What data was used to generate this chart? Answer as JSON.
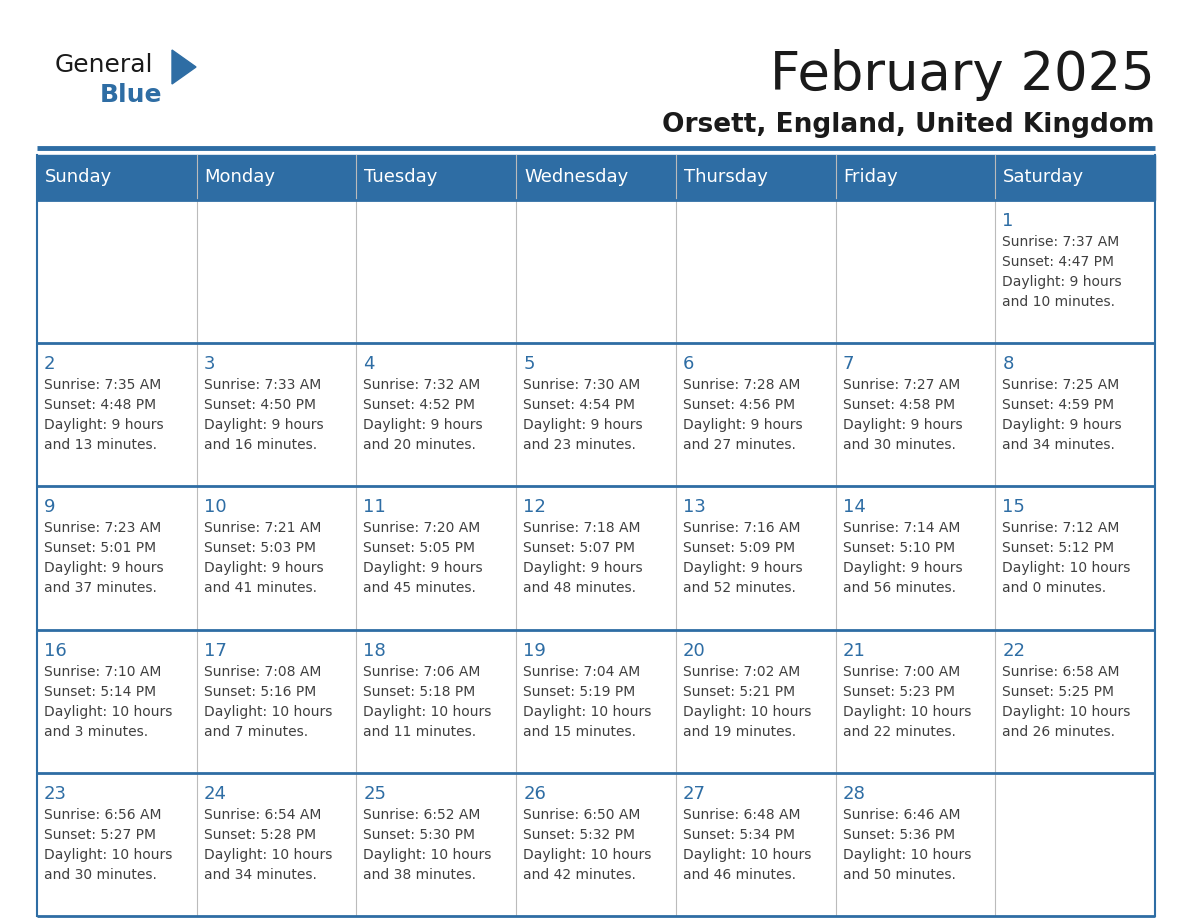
{
  "title": "February 2025",
  "subtitle": "Orsett, England, United Kingdom",
  "header_bg": "#2E6DA4",
  "header_text_color": "#FFFFFF",
  "cell_bg_light": "#EFEFEF",
  "cell_bg_white": "#FFFFFF",
  "day_number_color": "#2E6DA4",
  "info_text_color": "#404040",
  "border_color": "#2E6DA4",
  "separator_color": "#3a7fc1",
  "days_of_week": [
    "Sunday",
    "Monday",
    "Tuesday",
    "Wednesday",
    "Thursday",
    "Friday",
    "Saturday"
  ],
  "weeks": [
    [
      {
        "day": null,
        "info": ""
      },
      {
        "day": null,
        "info": ""
      },
      {
        "day": null,
        "info": ""
      },
      {
        "day": null,
        "info": ""
      },
      {
        "day": null,
        "info": ""
      },
      {
        "day": null,
        "info": ""
      },
      {
        "day": 1,
        "info": "Sunrise: 7:37 AM\nSunset: 4:47 PM\nDaylight: 9 hours\nand 10 minutes."
      }
    ],
    [
      {
        "day": 2,
        "info": "Sunrise: 7:35 AM\nSunset: 4:48 PM\nDaylight: 9 hours\nand 13 minutes."
      },
      {
        "day": 3,
        "info": "Sunrise: 7:33 AM\nSunset: 4:50 PM\nDaylight: 9 hours\nand 16 minutes."
      },
      {
        "day": 4,
        "info": "Sunrise: 7:32 AM\nSunset: 4:52 PM\nDaylight: 9 hours\nand 20 minutes."
      },
      {
        "day": 5,
        "info": "Sunrise: 7:30 AM\nSunset: 4:54 PM\nDaylight: 9 hours\nand 23 minutes."
      },
      {
        "day": 6,
        "info": "Sunrise: 7:28 AM\nSunset: 4:56 PM\nDaylight: 9 hours\nand 27 minutes."
      },
      {
        "day": 7,
        "info": "Sunrise: 7:27 AM\nSunset: 4:58 PM\nDaylight: 9 hours\nand 30 minutes."
      },
      {
        "day": 8,
        "info": "Sunrise: 7:25 AM\nSunset: 4:59 PM\nDaylight: 9 hours\nand 34 minutes."
      }
    ],
    [
      {
        "day": 9,
        "info": "Sunrise: 7:23 AM\nSunset: 5:01 PM\nDaylight: 9 hours\nand 37 minutes."
      },
      {
        "day": 10,
        "info": "Sunrise: 7:21 AM\nSunset: 5:03 PM\nDaylight: 9 hours\nand 41 minutes."
      },
      {
        "day": 11,
        "info": "Sunrise: 7:20 AM\nSunset: 5:05 PM\nDaylight: 9 hours\nand 45 minutes."
      },
      {
        "day": 12,
        "info": "Sunrise: 7:18 AM\nSunset: 5:07 PM\nDaylight: 9 hours\nand 48 minutes."
      },
      {
        "day": 13,
        "info": "Sunrise: 7:16 AM\nSunset: 5:09 PM\nDaylight: 9 hours\nand 52 minutes."
      },
      {
        "day": 14,
        "info": "Sunrise: 7:14 AM\nSunset: 5:10 PM\nDaylight: 9 hours\nand 56 minutes."
      },
      {
        "day": 15,
        "info": "Sunrise: 7:12 AM\nSunset: 5:12 PM\nDaylight: 10 hours\nand 0 minutes."
      }
    ],
    [
      {
        "day": 16,
        "info": "Sunrise: 7:10 AM\nSunset: 5:14 PM\nDaylight: 10 hours\nand 3 minutes."
      },
      {
        "day": 17,
        "info": "Sunrise: 7:08 AM\nSunset: 5:16 PM\nDaylight: 10 hours\nand 7 minutes."
      },
      {
        "day": 18,
        "info": "Sunrise: 7:06 AM\nSunset: 5:18 PM\nDaylight: 10 hours\nand 11 minutes."
      },
      {
        "day": 19,
        "info": "Sunrise: 7:04 AM\nSunset: 5:19 PM\nDaylight: 10 hours\nand 15 minutes."
      },
      {
        "day": 20,
        "info": "Sunrise: 7:02 AM\nSunset: 5:21 PM\nDaylight: 10 hours\nand 19 minutes."
      },
      {
        "day": 21,
        "info": "Sunrise: 7:00 AM\nSunset: 5:23 PM\nDaylight: 10 hours\nand 22 minutes."
      },
      {
        "day": 22,
        "info": "Sunrise: 6:58 AM\nSunset: 5:25 PM\nDaylight: 10 hours\nand 26 minutes."
      }
    ],
    [
      {
        "day": 23,
        "info": "Sunrise: 6:56 AM\nSunset: 5:27 PM\nDaylight: 10 hours\nand 30 minutes."
      },
      {
        "day": 24,
        "info": "Sunrise: 6:54 AM\nSunset: 5:28 PM\nDaylight: 10 hours\nand 34 minutes."
      },
      {
        "day": 25,
        "info": "Sunrise: 6:52 AM\nSunset: 5:30 PM\nDaylight: 10 hours\nand 38 minutes."
      },
      {
        "day": 26,
        "info": "Sunrise: 6:50 AM\nSunset: 5:32 PM\nDaylight: 10 hours\nand 42 minutes."
      },
      {
        "day": 27,
        "info": "Sunrise: 6:48 AM\nSunset: 5:34 PM\nDaylight: 10 hours\nand 46 minutes."
      },
      {
        "day": 28,
        "info": "Sunrise: 6:46 AM\nSunset: 5:36 PM\nDaylight: 10 hours\nand 50 minutes."
      },
      {
        "day": null,
        "info": ""
      }
    ]
  ],
  "logo_general_color": "#1a1a1a",
  "logo_blue_color": "#2E6DA4",
  "logo_triangle_color": "#2E6DA4",
  "title_fontsize": 38,
  "subtitle_fontsize": 19,
  "header_fontsize": 13,
  "day_number_fontsize": 13,
  "info_fontsize": 10
}
